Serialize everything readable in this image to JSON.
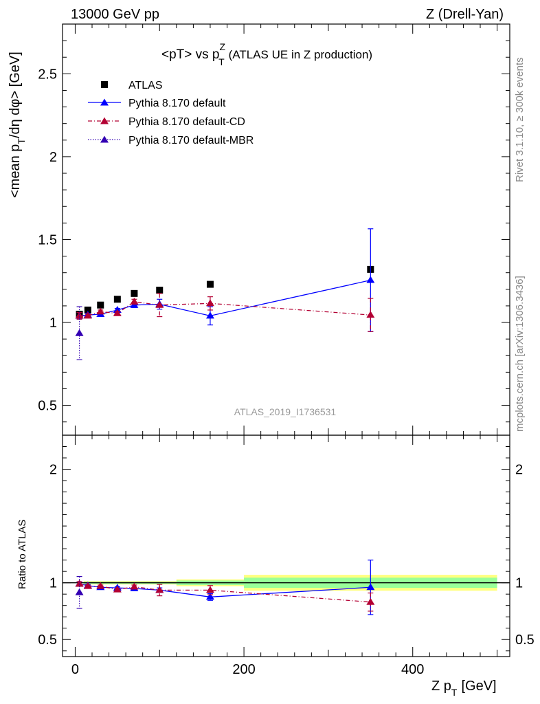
{
  "header": {
    "left": "13000 GeV pp",
    "right": "Z (Drell-Yan)"
  },
  "side_text": {
    "rivet": "Rivet 3.1.10, ≥ 300k events",
    "mcplots": "mcplots.cern.ch [arXiv:1306.3436]"
  },
  "colors": {
    "data": "#000000",
    "default": "#0000ff",
    "cd": "#b30033",
    "mbr": "#3300b3",
    "band_inner": "#99ff99",
    "band_outer": "#ffff80"
  },
  "chart_data": [
    {
      "type": "scatter",
      "panel": "main",
      "title_main": "<pT> vs p",
      "title_sup": "Z",
      "title_sub": "T",
      "title_rest": "(ATLAS UE in Z production)",
      "ylabel_a": "<mean p",
      "ylabel_sub": "T",
      "ylabel_b": "/dη dφ> [GeV]",
      "watermark": "ATLAS_2019_I1736531",
      "xlim": [
        -15,
        515
      ],
      "ylim": [
        0.32,
        2.8
      ],
      "yticks": [
        0.5,
        1,
        1.5,
        2,
        2.5
      ],
      "ytick_labels": [
        "0.5",
        "1",
        "1.5",
        "2",
        "2.5"
      ],
      "legend_position": "top-left",
      "series": [
        {
          "name": "ATLAS",
          "x": [
            5,
            15,
            30,
            50,
            70,
            100,
            160,
            350
          ],
          "y": [
            1.05,
            1.075,
            1.105,
            1.14,
            1.175,
            1.195,
            1.23,
            1.32
          ],
          "yerr": [
            0,
            0,
            0,
            0,
            0,
            0,
            0,
            0
          ]
        },
        {
          "name": "Pythia 8.170 default",
          "x": [
            5,
            15,
            30,
            50,
            70,
            100,
            160,
            350
          ],
          "y": [
            1.04,
            1.045,
            1.05,
            1.075,
            1.105,
            1.11,
            1.04,
            1.255
          ],
          "yerr": [
            0.02,
            0.01,
            0.01,
            0.01,
            0.015,
            0.03,
            0.055,
            0.31
          ]
        },
        {
          "name": "Pythia 8.170 default-CD",
          "x": [
            5,
            15,
            30,
            50,
            70,
            100,
            160,
            350
          ],
          "y": [
            1.04,
            1.04,
            1.065,
            1.055,
            1.125,
            1.105,
            1.115,
            1.045
          ],
          "yerr": [
            0.02,
            0.01,
            0.01,
            0.01,
            0.015,
            0.07,
            0.04,
            0.1
          ]
        },
        {
          "name": "Pythia 8.170 default-MBR",
          "x": [
            5
          ],
          "y": [
            0.935
          ],
          "yerr": [
            0.16
          ]
        }
      ]
    },
    {
      "type": "scatter",
      "panel": "ratio",
      "ylabel": "Ratio to ATLAS",
      "xlabel_main": "Z p",
      "xlabel_sub": "T",
      "xlabel_rest": "[GeV]",
      "xlim": [
        -15,
        515
      ],
      "ylim": [
        0.35,
        2.3
      ],
      "xticks": [
        0,
        200,
        400
      ],
      "xtick_labels": [
        "0",
        "200",
        "400"
      ],
      "yticks": [
        0.5,
        1,
        2
      ],
      "ytick_labels": [
        "0.5",
        "1",
        "2"
      ],
      "bands": [
        {
          "x": [
            10,
            120
          ],
          "inner": [
            0.99,
            1.01
          ],
          "outer": [
            0.985,
            1.015
          ]
        },
        {
          "x": [
            120,
            200
          ],
          "inner": [
            0.98,
            1.02
          ],
          "outer": [
            0.97,
            1.03
          ]
        },
        {
          "x": [
            200,
            500
          ],
          "inner": [
            0.955,
            1.045
          ],
          "outer": [
            0.93,
            1.07
          ]
        }
      ],
      "series": [
        {
          "name": "Pythia 8.170 default",
          "x": [
            5,
            15,
            30,
            50,
            70,
            100,
            160,
            350
          ],
          "y": [
            0.99,
            0.975,
            0.96,
            0.955,
            0.95,
            0.935,
            0.875,
            0.96
          ],
          "yerr": [
            0.02,
            0.01,
            0.01,
            0.01,
            0.01,
            0.02,
            0.03,
            0.24
          ]
        },
        {
          "name": "Pythia 8.170 default-CD",
          "x": [
            5,
            15,
            30,
            50,
            70,
            100,
            160,
            350
          ],
          "y": [
            0.99,
            0.97,
            0.97,
            0.94,
            0.965,
            0.935,
            0.935,
            0.83
          ],
          "yerr": [
            0.02,
            0.01,
            0.01,
            0.01,
            0.015,
            0.05,
            0.04,
            0.08
          ]
        },
        {
          "name": "Pythia 8.170 default-MBR",
          "x": [
            5
          ],
          "y": [
            0.915
          ],
          "yerr": [
            0.14
          ]
        }
      ]
    }
  ]
}
